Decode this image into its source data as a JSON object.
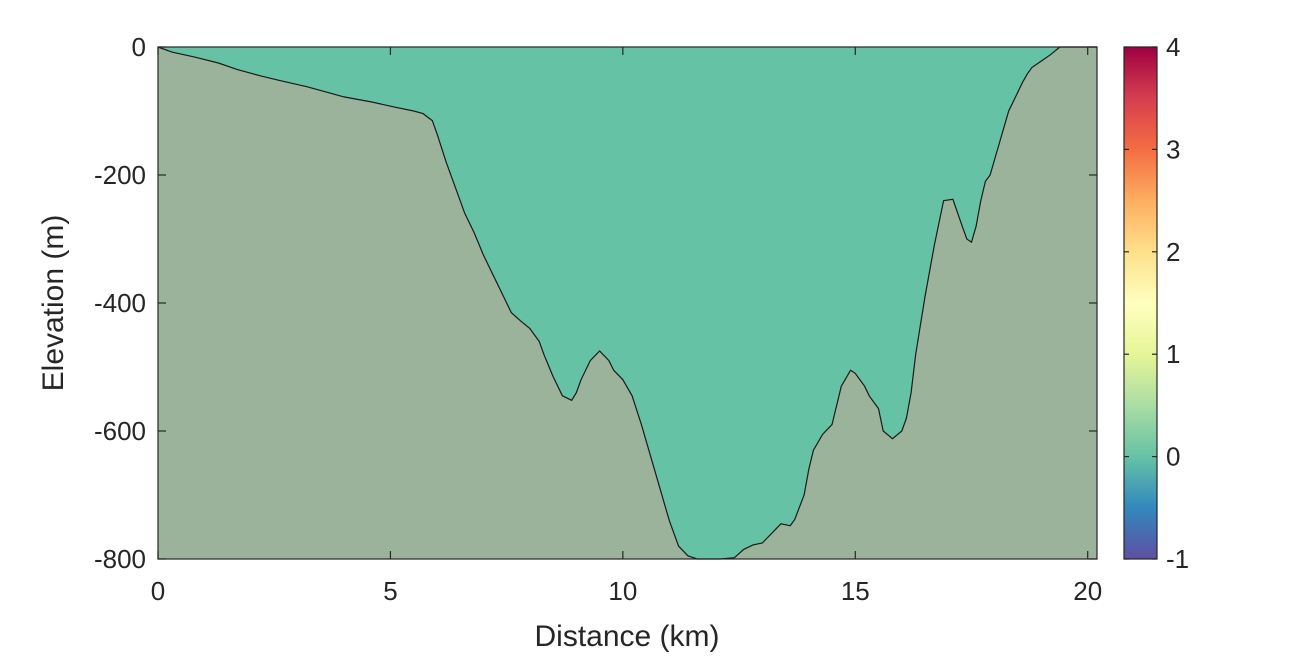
{
  "chart_data": {
    "type": "area",
    "title": "",
    "xlabel": "Distance (km)",
    "ylabel": "Elevation (m)",
    "xlim": [
      0,
      20.2
    ],
    "ylim": [
      -800,
      0
    ],
    "xticks": [
      0,
      5,
      10,
      15,
      20
    ],
    "yticks": [
      0,
      -200,
      -400,
      -600,
      -800
    ],
    "grid": false,
    "colors": {
      "water": "#66c2a5",
      "seabed": "#9bb39a",
      "outline": "#1a1a1a"
    },
    "bed_profile": {
      "x": [
        0,
        0.3,
        0.8,
        1.3,
        1.7,
        2.2,
        2.6,
        3.2,
        3.7,
        4.0,
        4.6,
        5.1,
        5.5,
        5.7,
        5.9,
        6.0,
        6.2,
        6.4,
        6.6,
        6.8,
        7.0,
        7.2,
        7.4,
        7.6,
        7.8,
        8.0,
        8.2,
        8.3,
        8.5,
        8.7,
        8.9,
        9.0,
        9.1,
        9.3,
        9.5,
        9.7,
        9.8,
        10.0,
        10.2,
        10.4,
        10.6,
        10.8,
        11.0,
        11.2,
        11.4,
        11.6,
        11.8,
        12.0,
        12.1,
        12.4,
        12.6,
        12.8,
        13.0,
        13.2,
        13.4,
        13.6,
        13.7,
        13.9,
        14.0,
        14.1,
        14.3,
        14.5,
        14.7,
        14.9,
        15.0,
        15.2,
        15.3,
        15.5,
        15.6,
        15.8,
        16.0,
        16.1,
        16.2,
        16.3,
        16.5,
        16.7,
        16.9,
        17.1,
        17.3,
        17.4,
        17.5,
        17.6,
        17.7,
        17.8,
        17.9,
        18.1,
        18.3,
        18.5,
        18.6,
        18.7,
        18.8,
        19.0,
        19.2,
        19.4,
        19.6,
        19.8,
        19.9,
        20.0,
        20.2
      ],
      "y": [
        0,
        -8,
        -16,
        -25,
        -35,
        -45,
        -52,
        -62,
        -72,
        -78,
        -86,
        -94,
        -100,
        -104,
        -115,
        -135,
        -180,
        -220,
        -260,
        -290,
        -325,
        -355,
        -385,
        -415,
        -428,
        -440,
        -460,
        -480,
        -515,
        -545,
        -552,
        -540,
        -520,
        -490,
        -475,
        -490,
        -505,
        -520,
        -545,
        -590,
        -640,
        -690,
        -740,
        -780,
        -795,
        -800,
        -800,
        -800,
        -800,
        -798,
        -785,
        -778,
        -775,
        -760,
        -745,
        -748,
        -738,
        -700,
        -660,
        -630,
        -605,
        -590,
        -530,
        -505,
        -510,
        -530,
        -545,
        -565,
        -600,
        -612,
        -600,
        -580,
        -540,
        -480,
        -390,
        -310,
        -240,
        -238,
        -280,
        -300,
        -305,
        -280,
        -240,
        -210,
        -200,
        -150,
        -100,
        -70,
        -55,
        -42,
        -32,
        -22,
        -12,
        0,
        0,
        0,
        0,
        0,
        0
      ],
      "clip_note": ""
    }
  }
}
